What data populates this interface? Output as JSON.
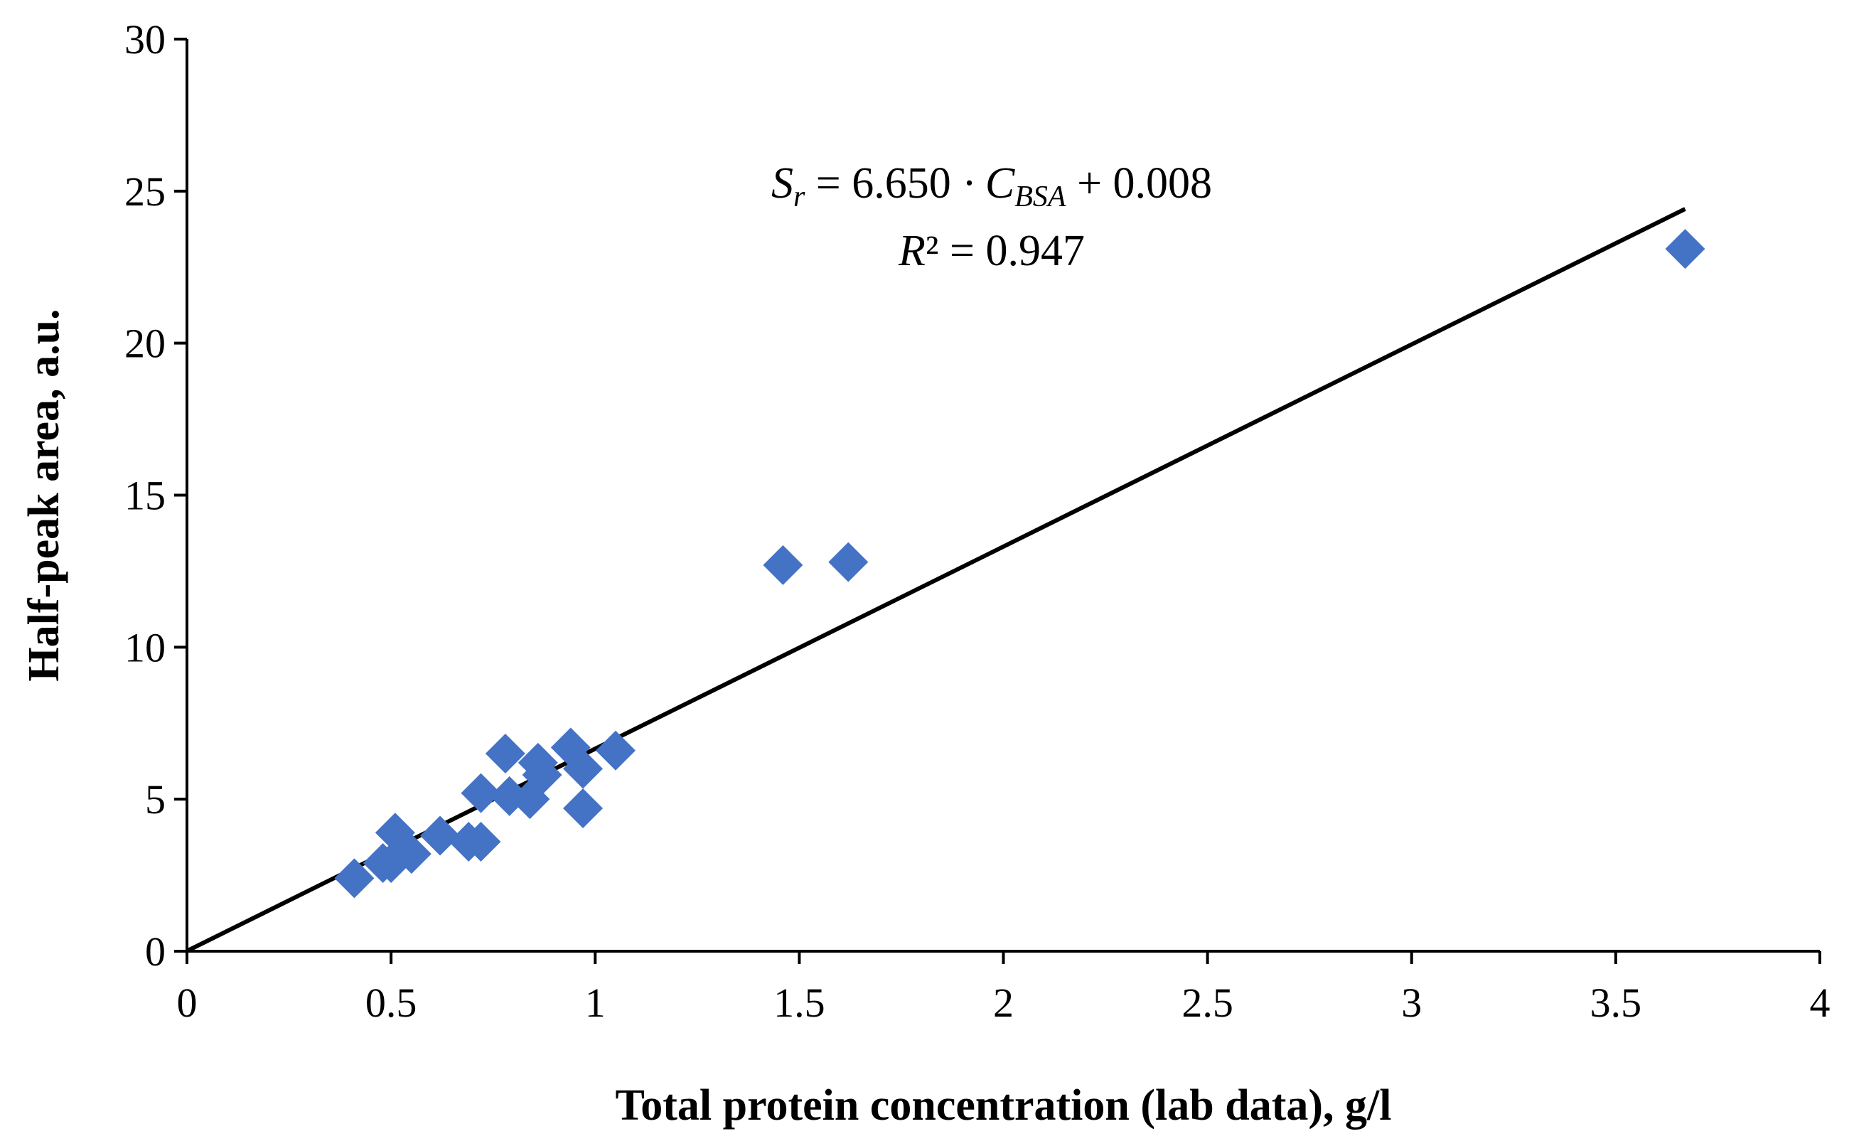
{
  "chart_data": {
    "type": "scatter",
    "title": "",
    "xlabel": "Total protein concentration (lab data), g/l",
    "ylabel": "Half-peak area, a.u.",
    "xlim": [
      0,
      4
    ],
    "ylim": [
      0,
      30
    ],
    "x_ticks": [
      "0",
      "0.5",
      "1",
      "1.5",
      "2",
      "2.5",
      "3",
      "3.5",
      "4"
    ],
    "y_ticks": [
      "0",
      "5",
      "10",
      "15",
      "20",
      "25",
      "30"
    ],
    "grid": false,
    "legend": "none",
    "marker_color": "#4472C4",
    "marker": "diamond",
    "series": [
      {
        "points": [
          {
            "x": 0.41,
            "y": 2.4
          },
          {
            "x": 0.48,
            "y": 2.9
          },
          {
            "x": 0.5,
            "y": 2.9
          },
          {
            "x": 0.51,
            "y": 3.9
          },
          {
            "x": 0.55,
            "y": 3.2
          },
          {
            "x": 0.62,
            "y": 3.8
          },
          {
            "x": 0.69,
            "y": 3.6
          },
          {
            "x": 0.72,
            "y": 3.6
          },
          {
            "x": 0.72,
            "y": 5.2
          },
          {
            "x": 0.78,
            "y": 6.5
          },
          {
            "x": 0.79,
            "y": 5.1
          },
          {
            "x": 0.84,
            "y": 5.0
          },
          {
            "x": 0.86,
            "y": 6.2
          },
          {
            "x": 0.87,
            "y": 5.8
          },
          {
            "x": 0.94,
            "y": 6.7
          },
          {
            "x": 0.97,
            "y": 6.0
          },
          {
            "x": 0.97,
            "y": 4.7
          },
          {
            "x": 1.05,
            "y": 6.6
          },
          {
            "x": 1.46,
            "y": 12.7
          },
          {
            "x": 1.62,
            "y": 12.8
          },
          {
            "x": 3.67,
            "y": 23.1
          }
        ]
      }
    ],
    "trendline": {
      "type": "linear",
      "slope": 6.65,
      "intercept": 0.008,
      "x_range": [
        0,
        3.67
      ],
      "color": "#000000"
    },
    "annotation": {
      "S_symbol": "S",
      "S_subscript": "r",
      "eq_middle": " = 6.650 ·",
      "C_symbol": "C",
      "C_subscript": "BSA",
      "eq_tail": " + 0.008",
      "R_symbol": "R",
      "r2_tail": "² = 0.947"
    }
  }
}
